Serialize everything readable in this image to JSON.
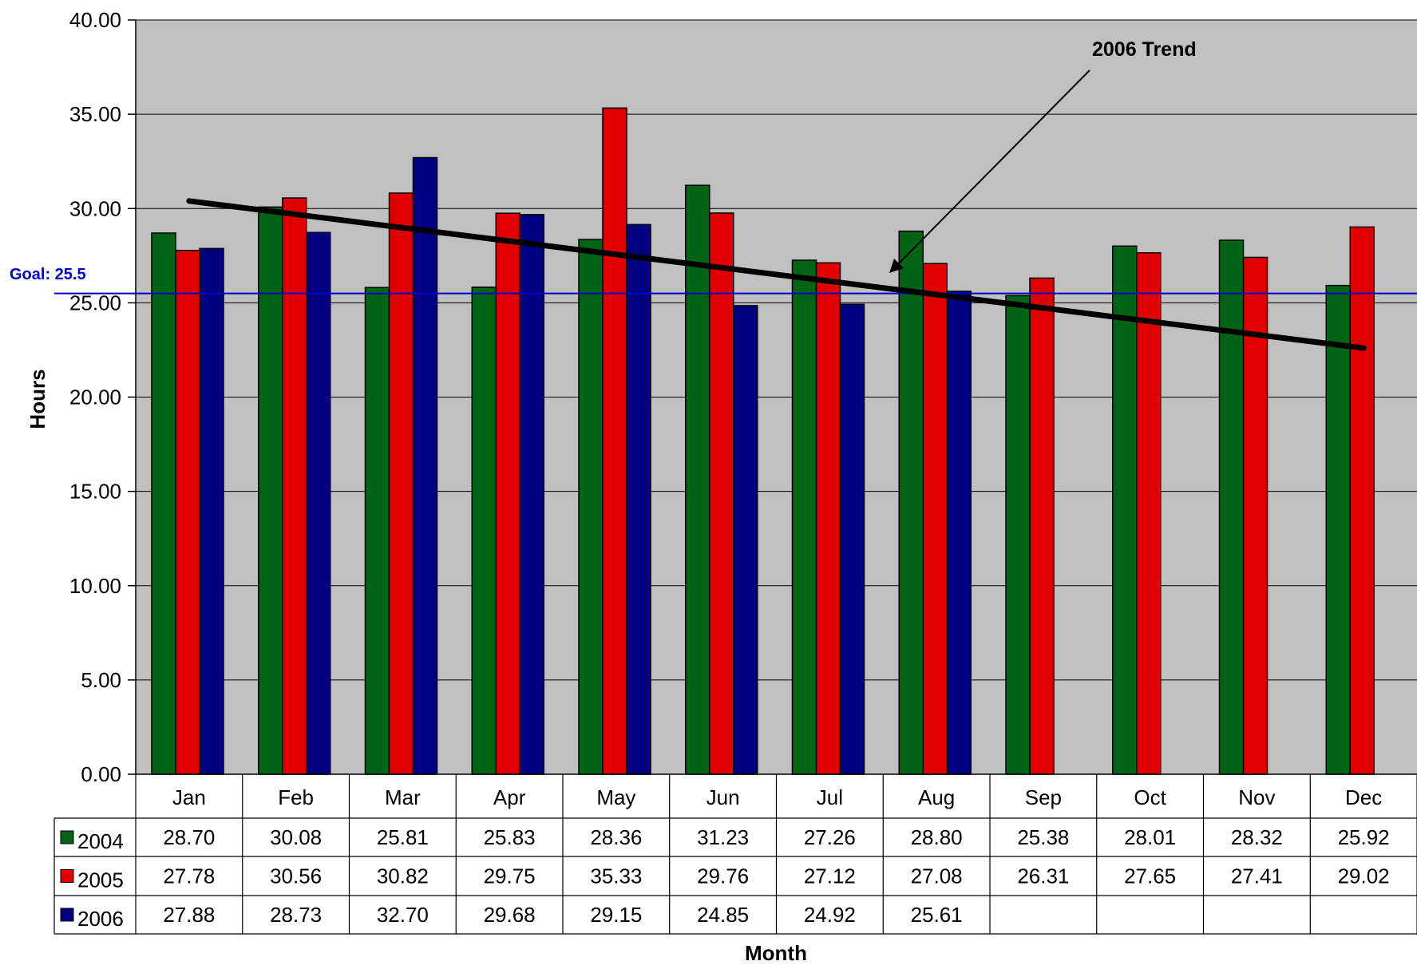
{
  "chart_data": {
    "type": "bar",
    "categories": [
      "Jan",
      "Feb",
      "Mar",
      "Apr",
      "May",
      "Jun",
      "Jul",
      "Aug",
      "Sep",
      "Oct",
      "Nov",
      "Dec"
    ],
    "series": [
      {
        "name": "2004",
        "color": "#006414",
        "values": [
          28.7,
          30.08,
          25.81,
          25.83,
          28.36,
          31.23,
          27.26,
          28.8,
          25.38,
          28.01,
          28.32,
          25.92
        ]
      },
      {
        "name": "2005",
        "color": "#e00000",
        "values": [
          27.78,
          30.56,
          30.82,
          29.75,
          35.33,
          29.76,
          27.12,
          27.08,
          26.31,
          27.65,
          27.41,
          29.02
        ]
      },
      {
        "name": "2006",
        "color": "#000080",
        "values": [
          27.88,
          28.73,
          32.7,
          29.68,
          29.15,
          24.85,
          24.92,
          25.61,
          null,
          null,
          null,
          null
        ]
      }
    ],
    "table_values": [
      [
        "28.70",
        "30.08",
        "25.81",
        "25.83",
        "28.36",
        "31.23",
        "27.26",
        "28.80",
        "25.38",
        "28.01",
        "28.32",
        "25.92"
      ],
      [
        "27.78",
        "30.56",
        "30.82",
        "29.75",
        "35.33",
        "29.76",
        "27.12",
        "27.08",
        "26.31",
        "27.65",
        "27.41",
        "29.02"
      ],
      [
        "27.88",
        "28.73",
        "32.70",
        "29.68",
        "29.15",
        "24.85",
        "24.92",
        "25.61",
        "",
        "",
        "",
        ""
      ]
    ],
    "ylabel": "Hours",
    "xlabel": "Month",
    "ylim": [
      0,
      40
    ],
    "yticks": [
      "0.00",
      "5.00",
      "10.00",
      "15.00",
      "20.00",
      "25.00",
      "30.00",
      "35.00",
      "40.00"
    ],
    "grid": true,
    "plot_background": "#c0c0c0",
    "goal": {
      "label": "Goal:  25.5",
      "value": 25.5,
      "color": "#0000cc"
    },
    "trend": {
      "label": "2006 Trend",
      "start_value": 30.4,
      "end_value": 22.6
    },
    "legend": "data-table"
  }
}
